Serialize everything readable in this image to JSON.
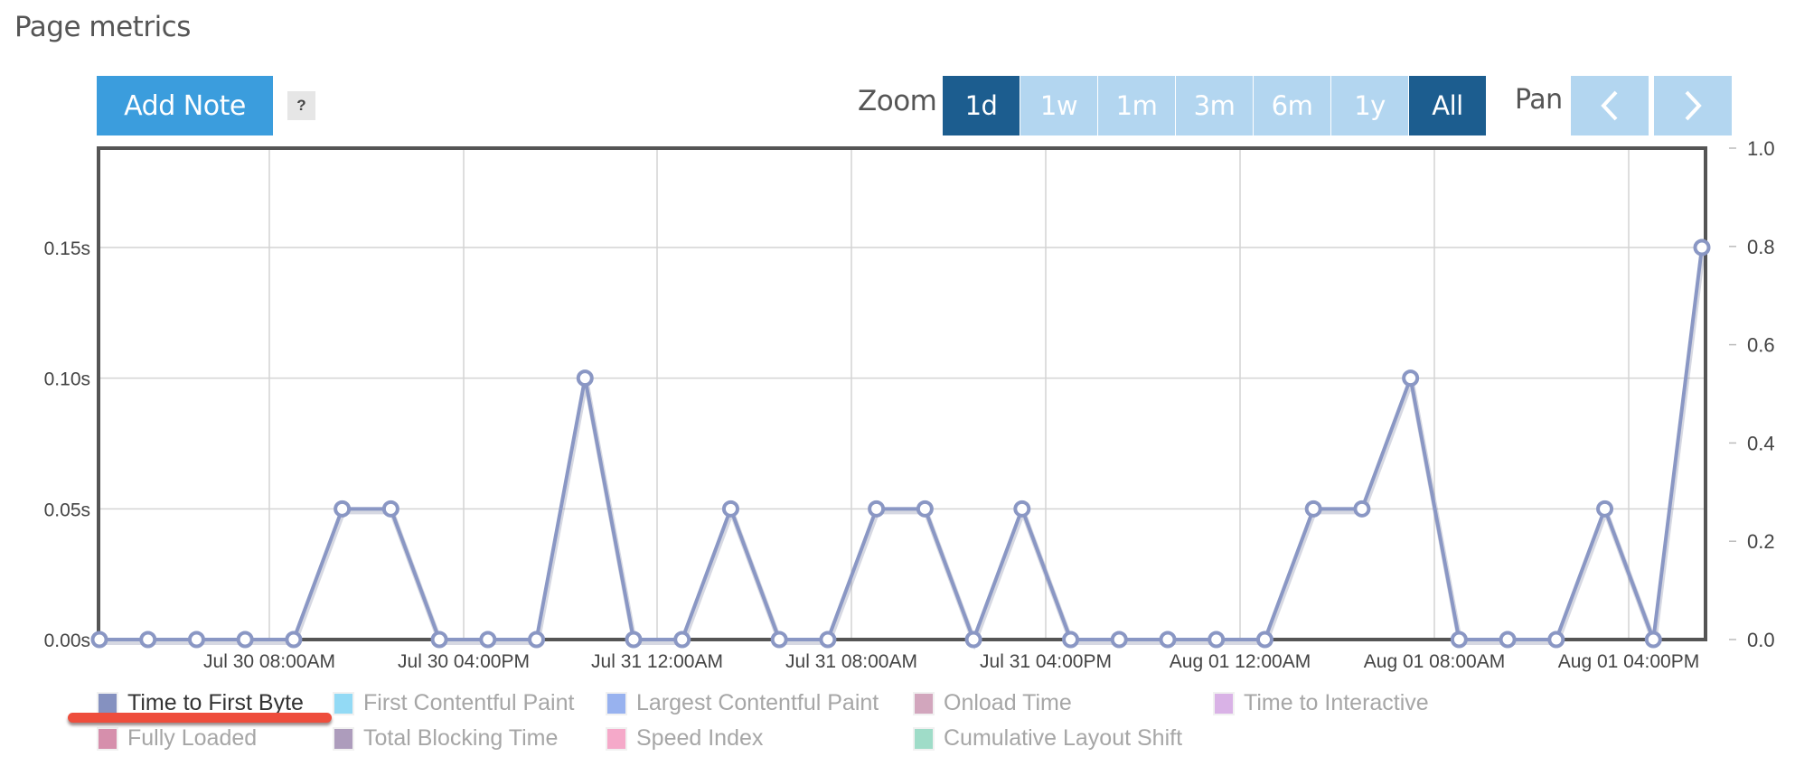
{
  "page": {
    "title": "Page metrics"
  },
  "toolbar": {
    "add_note_label": "Add Note",
    "help_label": "?",
    "zoom_label": "Zoom",
    "zoom_options": [
      {
        "label": "1d",
        "active": true
      },
      {
        "label": "1w",
        "active": false
      },
      {
        "label": "1m",
        "active": false
      },
      {
        "label": "3m",
        "active": false
      },
      {
        "label": "6m",
        "active": false
      },
      {
        "label": "1y",
        "active": false
      },
      {
        "label": "All",
        "active": true
      }
    ],
    "pan_label": "Pan",
    "pan_prev_icon": "chevron-left-icon",
    "pan_next_icon": "chevron-right-icon"
  },
  "colors": {
    "add_note_bg": "#3b9ddd",
    "zoom_active_bg": "#1c5d8f",
    "zoom_inactive_bg": "#b3d6f0",
    "series_line": "#8a97c4",
    "annotation": "#ee4d3c"
  },
  "legend": {
    "items": [
      {
        "label": "Time to First Byte",
        "color": "#8591c0",
        "active": true
      },
      {
        "label": "First Contentful Paint",
        "color": "#93daf5",
        "active": false
      },
      {
        "label": "Largest Contentful Paint",
        "color": "#98b2ef",
        "active": false
      },
      {
        "label": "Onload Time",
        "color": "#d2a6bd",
        "active": false
      },
      {
        "label": "Time to Interactive",
        "color": "#d9b2e6",
        "active": false
      },
      {
        "label": "Fully Loaded",
        "color": "#d68fac",
        "active": false
      },
      {
        "label": "Total Blocking Time",
        "color": "#ad9cbc",
        "active": false
      },
      {
        "label": "Speed Index",
        "color": "#f5a9c9",
        "active": false
      },
      {
        "label": "Cumulative Layout Shift",
        "color": "#9fdcc8",
        "active": false
      }
    ]
  },
  "chart_data": {
    "type": "line",
    "title": "Page metrics",
    "xlabel": "",
    "ylabel": "",
    "y_left_ticks": [
      "0.00s",
      "0.05s",
      "0.10s",
      "0.15s"
    ],
    "y_right_ticks": [
      "0.0",
      "0.2",
      "0.4",
      "0.6",
      "0.8",
      "1.0"
    ],
    "x_tick_labels": [
      "Jul 30 08:00AM",
      "Jul 30 04:00PM",
      "Jul 31 12:00AM",
      "Jul 31 08:00AM",
      "Jul 31 04:00PM",
      "Aug 01 12:00AM",
      "Aug 01 08:00AM",
      "Aug 01 04:00PM"
    ],
    "ylim": [
      0,
      0.188
    ],
    "y_right_lim": [
      0,
      1.0
    ],
    "grid": true,
    "legend_position": "bottom",
    "series": [
      {
        "name": "Time to First Byte",
        "unit": "s",
        "values": [
          0,
          0,
          0,
          0,
          0,
          0.05,
          0.05,
          0,
          0,
          0,
          0.1,
          0,
          0,
          0.05,
          0,
          0,
          0.05,
          0.05,
          0,
          0.05,
          0,
          0,
          0,
          0,
          0,
          0.05,
          0.05,
          0.1,
          0,
          0,
          0,
          0.05,
          0,
          0.15
        ]
      }
    ]
  }
}
